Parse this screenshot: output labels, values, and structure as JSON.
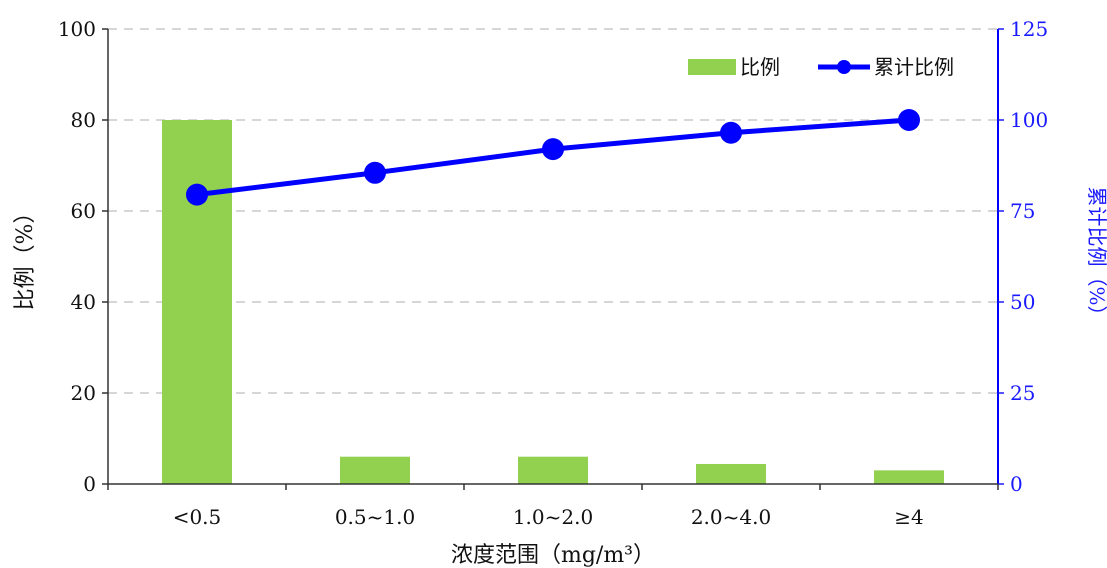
{
  "chart_data": {
    "type": "bar+line",
    "categories": [
      "<0.5",
      "0.5~1.0",
      "1.0~2.0",
      "2.0~4.0",
      "≥4"
    ],
    "series": [
      {
        "name": "比例",
        "type": "bar",
        "axis": "left",
        "values": [
          80,
          6,
          6,
          4.4,
          3
        ]
      },
      {
        "name": "累计比例",
        "type": "line",
        "axis": "right",
        "values": [
          79.5,
          85.5,
          92.0,
          96.5,
          100.0
        ]
      }
    ],
    "xlabel": "浓度范围（mg/m³）",
    "ylabel_left": "比例（%）",
    "ylabel_right": "累计比例（%）",
    "ylim_left": [
      0,
      100
    ],
    "ylim_right": [
      0,
      125
    ],
    "yticks_left": [
      "0",
      "20",
      "40",
      "60",
      "80",
      "100"
    ],
    "yticks_right": [
      "0",
      "25",
      "50",
      "75",
      "100",
      "125"
    ],
    "grid": "horizontal dashed",
    "legend_position": "top-right",
    "colors": {
      "bar": "#92d050",
      "line": "#0000ff",
      "right_axis": "#1a1aff"
    }
  }
}
